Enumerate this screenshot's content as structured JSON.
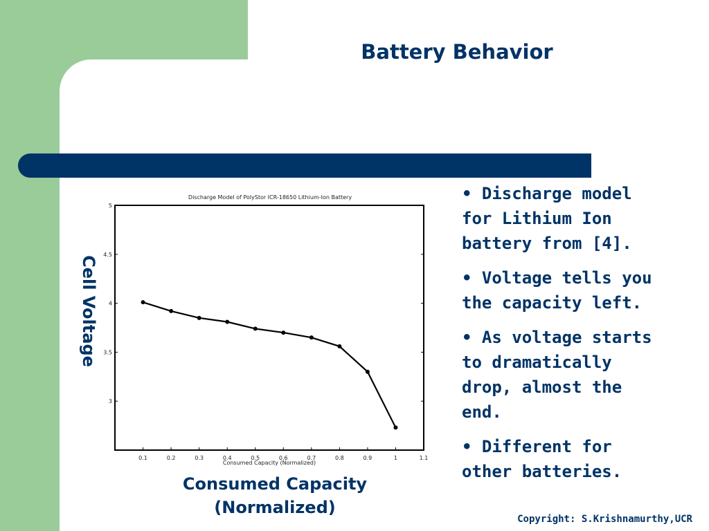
{
  "slide": {
    "title": "Battery Behavior",
    "y_axis_label": "Cell Voltage",
    "x_axis_label_line1": "Consumed Capacity",
    "x_axis_label_line2": "(Normalized)",
    "bullets": [
      "• Discharge model for Lithium Ion battery from [4].",
      "• Voltage tells you the capacity left.",
      "• As voltage starts to dramatically drop, almost the end.",
      "• Different for other batteries."
    ],
    "copyright": "Copyright: S.Krishnamurthy,UCR"
  },
  "colors": {
    "sidebar_green": "#99cc99",
    "navy": "#003366"
  },
  "chart_data": {
    "type": "line",
    "title": "Discharge Model of PolyStor ICR-18650 Lithium-Ion Battery",
    "xlabel": "Consumed Capacity (Normalized)",
    "ylabel": "",
    "xlim": [
      0.0,
      1.1
    ],
    "ylim": [
      2.5,
      5.0
    ],
    "x_ticks": [
      "0.1",
      "0.2",
      "0.3",
      "0.4",
      "0.5",
      "0.6",
      "0.7",
      "0.8",
      "0.9",
      "1",
      "1.1"
    ],
    "y_ticks": [
      "3",
      "3.5",
      "4",
      "4.5",
      "5"
    ],
    "grid": false,
    "series": [
      {
        "x": [
          0.1,
          0.2,
          0.3,
          0.4,
          0.5,
          0.6,
          0.7,
          0.8,
          0.9,
          1.0
        ],
        "values": [
          4.01,
          3.92,
          3.85,
          3.81,
          3.74,
          3.7,
          3.65,
          3.56,
          3.3,
          2.73
        ]
      }
    ]
  }
}
